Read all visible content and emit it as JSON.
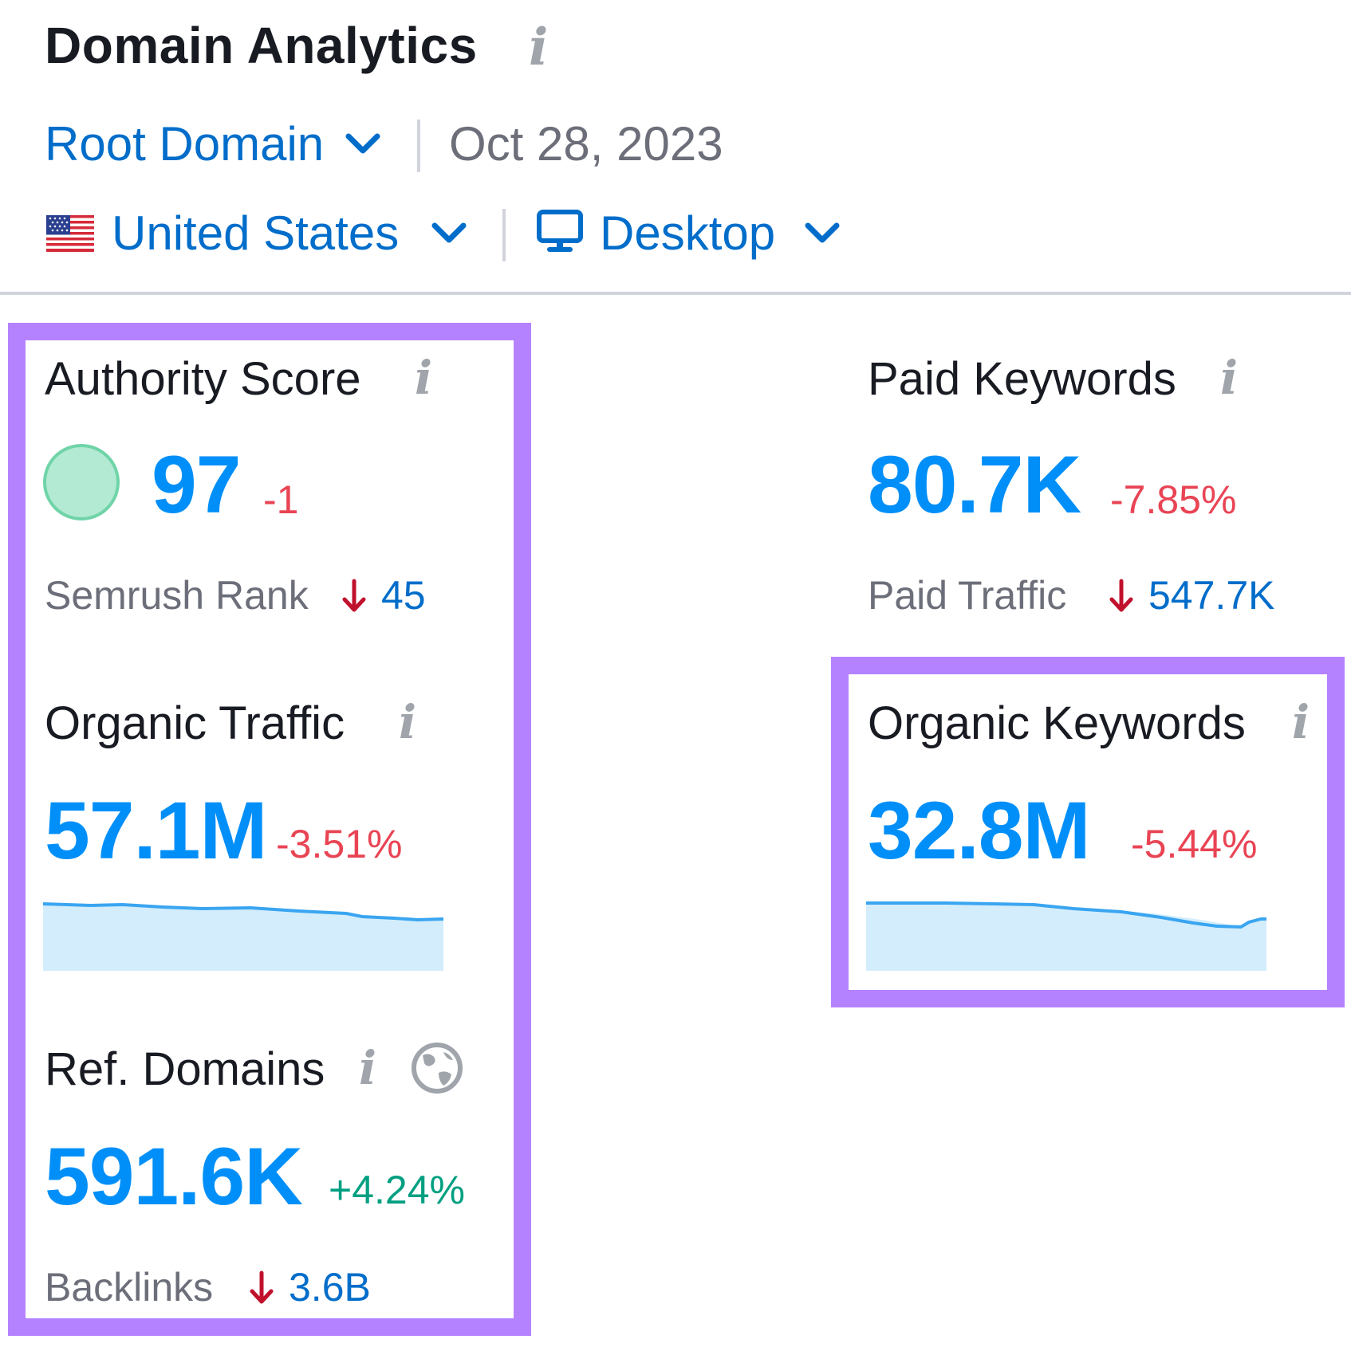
{
  "header": {
    "title": "Domain Analytics",
    "info_glyph": "i",
    "scope_label": "Root Domain",
    "date": "Oct 28, 2023",
    "country": "United States",
    "country_flag": "us-flag-icon",
    "device": "Desktop",
    "device_icon": "desktop-icon"
  },
  "metrics": {
    "authority_score": {
      "label": "Authority Score",
      "value": "97",
      "delta": "-1",
      "sub_label": "Semrush Rank",
      "sub_value": "45",
      "sub_trend": "down",
      "circle_color": "#b3ead3"
    },
    "paid_keywords": {
      "label": "Paid Keywords",
      "value": "80.7K",
      "delta": "-7.85%",
      "sub_label": "Paid Traffic",
      "sub_value": "547.7K",
      "sub_trend": "down"
    },
    "organic_traffic": {
      "label": "Organic Traffic",
      "value": "57.1M",
      "delta": "-3.51%"
    },
    "organic_keywords": {
      "label": "Organic Keywords",
      "value": "32.8M",
      "delta": "-5.44%"
    },
    "ref_domains": {
      "label": "Ref. Domains",
      "value": "591.6K",
      "delta": "+4.24%",
      "sub_label": "Backlinks",
      "sub_value": "3.6B",
      "sub_trend": "down"
    }
  },
  "colors": {
    "accent_link": "#006dca",
    "big_number": "#008ff8",
    "negative": "#e94454",
    "positive": "#009f81",
    "highlight": "#b582ff",
    "trend_arrow": "#c0112d",
    "sparkline_line": "#3aa5f0",
    "sparkline_fill": "#d3edfc"
  }
}
